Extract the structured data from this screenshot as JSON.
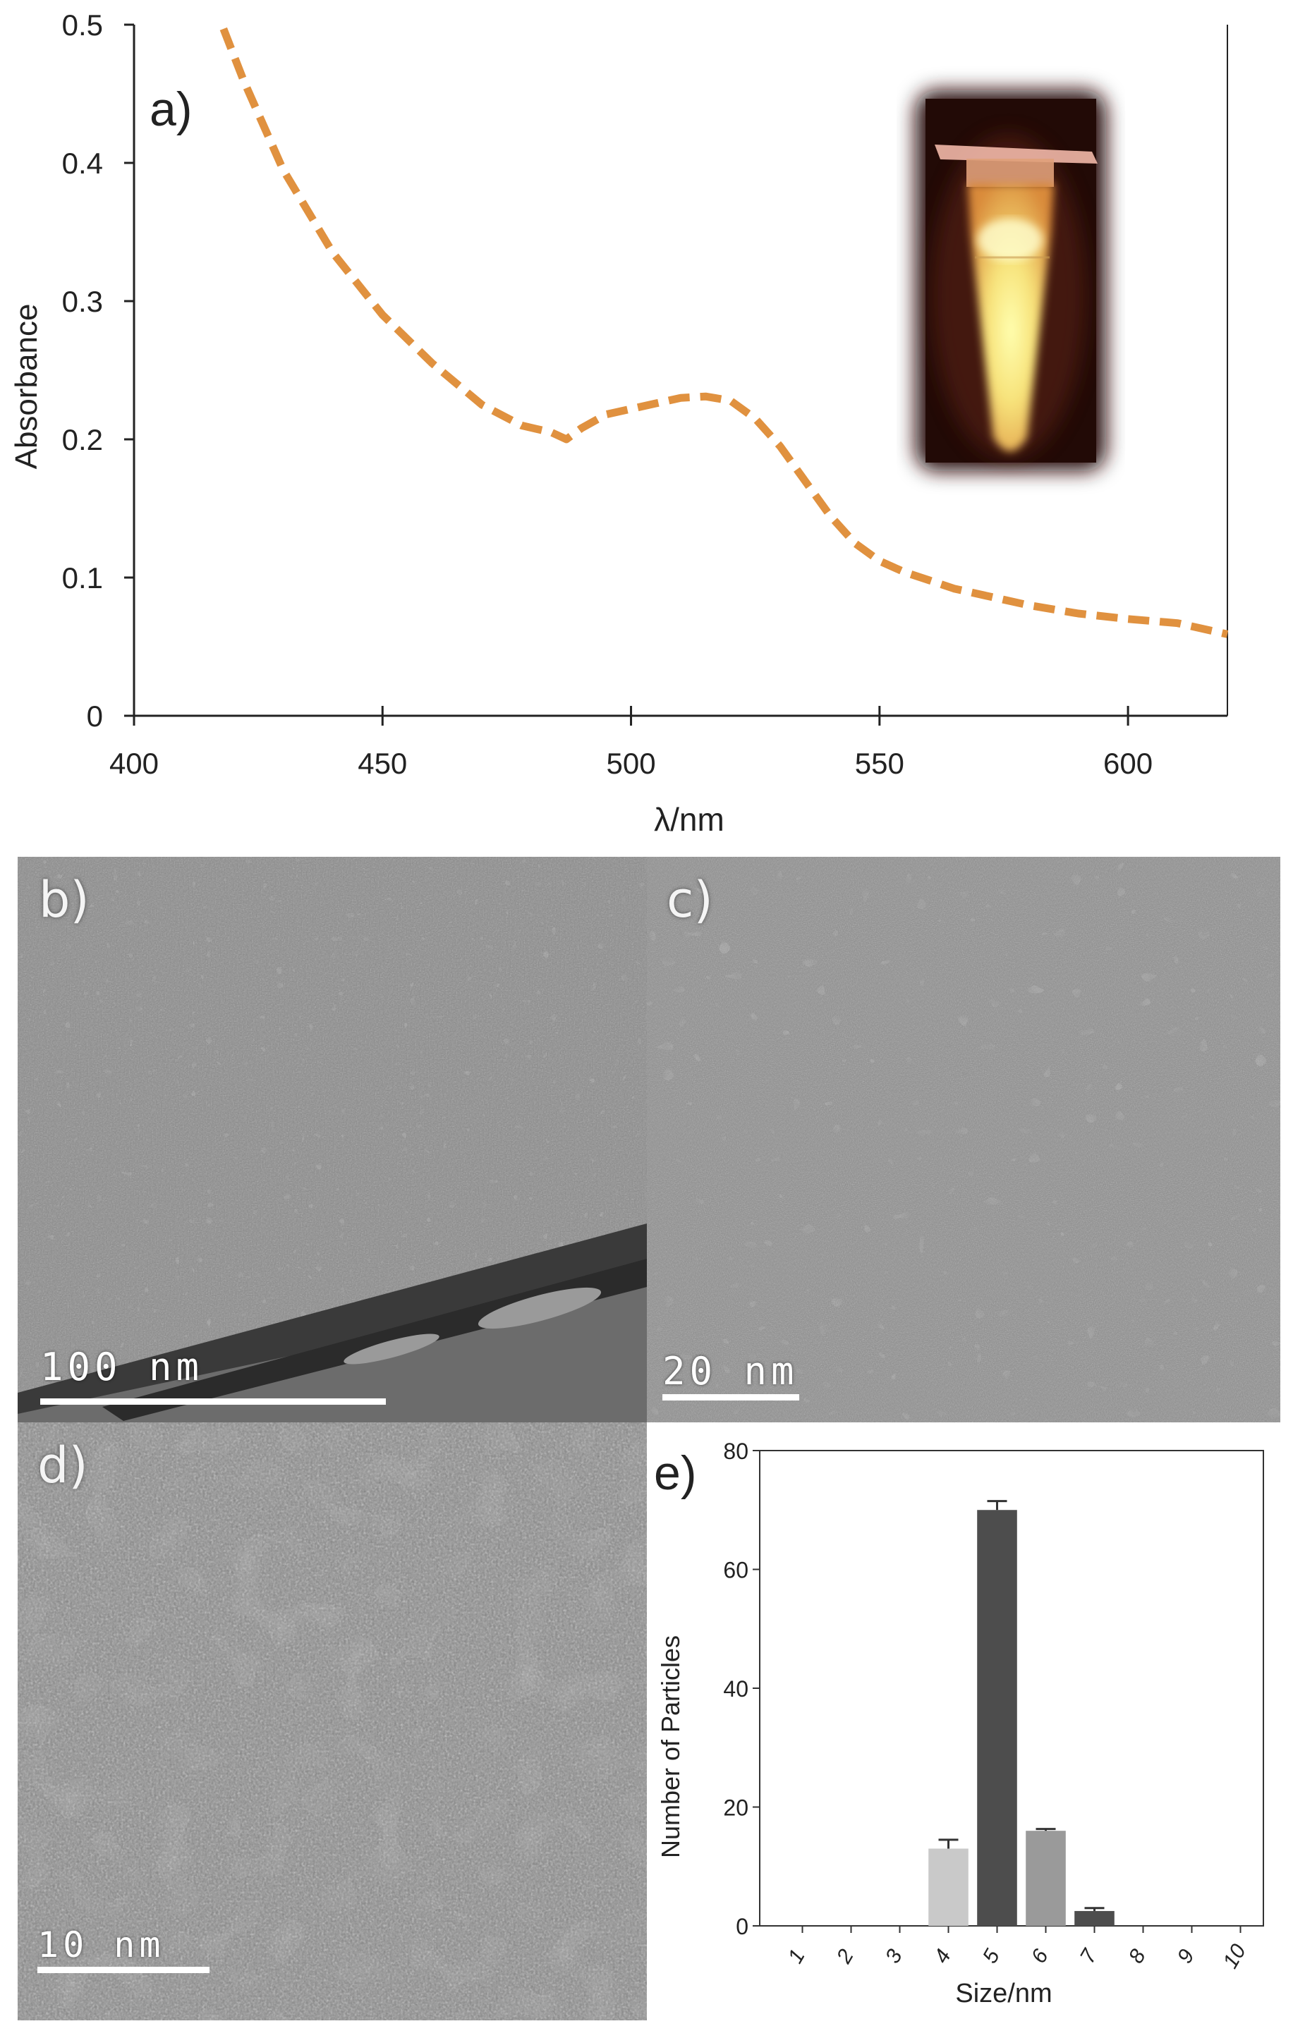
{
  "panel_a": {
    "label": "a)",
    "inset_desc": "glowing sample tube"
  },
  "panel_b": {
    "label": "b)",
    "scale_text": "100  nm"
  },
  "panel_c": {
    "label": "c)",
    "scale_text": "20  nm"
  },
  "panel_d": {
    "label": "d)",
    "scale_text": "10  nm"
  },
  "panel_e": {
    "label": "e)"
  },
  "colors": {
    "curve": "#e0913f",
    "bar_light": "#c9c9c9",
    "bar_dark": "#4d4d4d",
    "bar_mid": "#9a9a9a",
    "tem_gray": "#8a8a8a"
  },
  "chart_data": [
    {
      "id": "absorbance_spectrum",
      "type": "line",
      "xlabel": "λ/nm",
      "ylabel": "Absorbance",
      "xlim": [
        400,
        620
      ],
      "ylim": [
        0,
        0.5
      ],
      "xticks": [
        400,
        450,
        500,
        550,
        600
      ],
      "yticks": [
        0,
        0.1,
        0.2,
        0.3,
        0.4,
        0.5
      ],
      "ytick_labels": [
        "0",
        "0.1",
        "0.2",
        "0.3",
        "0.4",
        "0.5"
      ],
      "line_style": "dashed",
      "series": [
        {
          "x": [
            418,
            422,
            430,
            440,
            450,
            460,
            470,
            478,
            484,
            487,
            490,
            495,
            500,
            505,
            510,
            515,
            520,
            525,
            530,
            535,
            540,
            545,
            550,
            555,
            560,
            565,
            570,
            575,
            580,
            590,
            600,
            610,
            620
          ],
          "y": [
            0.497,
            0.46,
            0.395,
            0.335,
            0.29,
            0.255,
            0.225,
            0.21,
            0.205,
            0.2,
            0.208,
            0.218,
            0.222,
            0.226,
            0.23,
            0.231,
            0.228,
            0.215,
            0.195,
            0.17,
            0.145,
            0.125,
            0.112,
            0.104,
            0.098,
            0.092,
            0.088,
            0.084,
            0.08,
            0.074,
            0.07,
            0.067,
            0.059
          ]
        }
      ]
    },
    {
      "id": "size_distribution",
      "type": "bar",
      "xlabel": "Size/nm",
      "ylabel": "Number of Particles",
      "ylim": [
        0,
        80
      ],
      "yticks": [
        0,
        20,
        40,
        60,
        80
      ],
      "categories": [
        "1",
        "2",
        "3",
        "4",
        "5",
        "6",
        "7",
        "8",
        "9",
        "10"
      ],
      "values": [
        0,
        0,
        0,
        13,
        70,
        16,
        2.5,
        0,
        0,
        0
      ],
      "errors": [
        0,
        0,
        0,
        1.5,
        1.5,
        0.3,
        0.5,
        0,
        0,
        0
      ],
      "bar_colors": [
        "",
        "",
        "",
        "#c9c9c9",
        "#4d4d4d",
        "#9a9a9a",
        "#4d4d4d",
        "",
        "",
        ""
      ]
    }
  ]
}
